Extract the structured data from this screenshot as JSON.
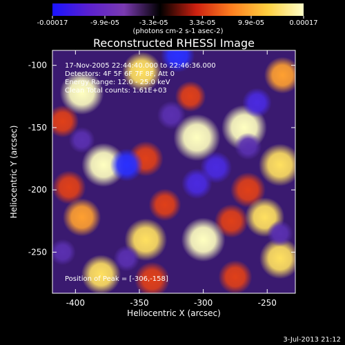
{
  "chart_data": {
    "type": "heatmap",
    "title": "Reconstructed RHESSI Image",
    "xlabel": "Heliocentric X (arcsec)",
    "ylabel": "Heliocentric Y (arcsec)",
    "xlim": [
      -418,
      -228
    ],
    "ylim": [
      -283,
      -88
    ],
    "x_ticks": [
      -400,
      -350,
      -300,
      -250
    ],
    "x_tick_labels": [
      "-400",
      "-350",
      "-300",
      "-250"
    ],
    "y_ticks": [
      -100,
      -150,
      -200,
      -250
    ],
    "y_tick_labels": [
      "-100",
      "-150",
      "-200",
      "-250"
    ],
    "colorbar": {
      "range": [
        -0.00017,
        0.00017
      ],
      "tick_values": [
        -0.00017,
        -9.9e-05,
        -3.3e-05,
        3.3e-05,
        9.9e-05,
        0.00017
      ],
      "tick_labels": [
        "-0.00017",
        "-9.9e-05",
        "-3.3e-05",
        "3.3e-05",
        "9.9e-05",
        "0.00017"
      ],
      "unit_label": "(photons cm-2 s-1 asec-2)",
      "colors": [
        "#1a14ff",
        "#5a20d0",
        "#7a3ab0",
        "#000000",
        "#cc2010",
        "#ff8020",
        "#ffd040",
        "#ffffc8"
      ]
    },
    "annotations": [
      "17-Nov-2005 22:44:40.000 to 22:46:36.000",
      "Detectors: 4F 5F 6F 7F 8F, Att 0",
      "Energy Range: 12.0 - 25.0 keV",
      "Clean     Total counts: 1.61E+03"
    ],
    "peak_text": "Position of Peak = [-306,-158]",
    "blobs": [
      {
        "x": -395,
        "y": -122,
        "v": 0.00015
      },
      {
        "x": -348,
        "y": -105,
        "v": 0.00012
      },
      {
        "x": -305,
        "y": -158,
        "v": 0.00017
      },
      {
        "x": -268,
        "y": -150,
        "v": 0.00016
      },
      {
        "x": -238,
        "y": -108,
        "v": 0.0001
      },
      {
        "x": -240,
        "y": -180,
        "v": 0.00014
      },
      {
        "x": -378,
        "y": -180,
        "v": 0.00015
      },
      {
        "x": -345,
        "y": -175,
        "v": 9e-05
      },
      {
        "x": -405,
        "y": -198,
        "v": 8e-05
      },
      {
        "x": -265,
        "y": -200,
        "v": 9e-05
      },
      {
        "x": -278,
        "y": -225,
        "v": 8e-05
      },
      {
        "x": -252,
        "y": -222,
        "v": 0.00012
      },
      {
        "x": -395,
        "y": -222,
        "v": 0.00011
      },
      {
        "x": -330,
        "y": -212,
        "v": 7e-05
      },
      {
        "x": -345,
        "y": -240,
        "v": 0.00014
      },
      {
        "x": -300,
        "y": -240,
        "v": 0.00015
      },
      {
        "x": -240,
        "y": -255,
        "v": 0.00013
      },
      {
        "x": -380,
        "y": -268,
        "v": 0.00012
      },
      {
        "x": -340,
        "y": -272,
        "v": 9e-05
      },
      {
        "x": -275,
        "y": -270,
        "v": 8e-05
      },
      {
        "x": -310,
        "y": -125,
        "v": 6e-05
      },
      {
        "x": -410,
        "y": -145,
        "v": 7e-05
      },
      {
        "x": -360,
        "y": -180,
        "v": -0.00012
      },
      {
        "x": -290,
        "y": -182,
        "v": -0.00011
      },
      {
        "x": -305,
        "y": -195,
        "v": -0.0001
      },
      {
        "x": -325,
        "y": -140,
        "v": -8e-05
      },
      {
        "x": -258,
        "y": -130,
        "v": -9e-05
      },
      {
        "x": -320,
        "y": -92,
        "v": -0.00013
      },
      {
        "x": -395,
        "y": -160,
        "v": -6e-05
      },
      {
        "x": -410,
        "y": -250,
        "v": -6e-05
      },
      {
        "x": -265,
        "y": -165,
        "v": -7e-05
      },
      {
        "x": -240,
        "y": -235,
        "v": -6e-05
      },
      {
        "x": -360,
        "y": -255,
        "v": -6e-05
      }
    ]
  },
  "footer": {
    "timestamp": "3-Jul-2013 21:12"
  }
}
